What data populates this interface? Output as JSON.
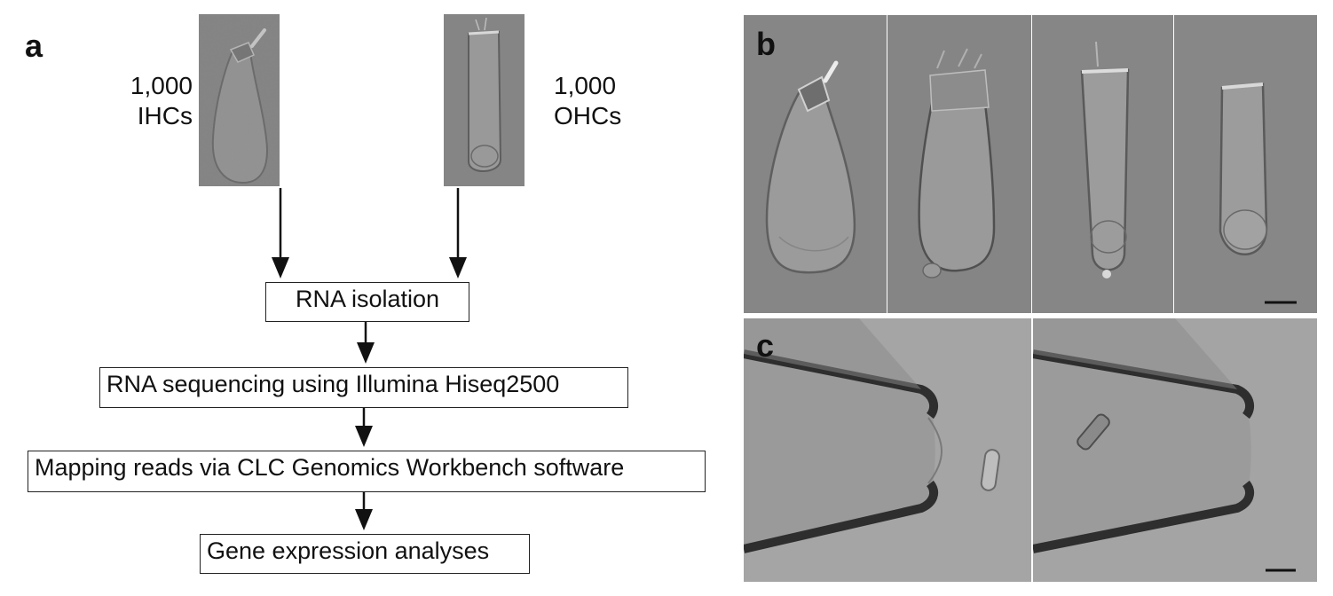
{
  "panel_a": {
    "label": "a",
    "ihc": {
      "line1": "1,000",
      "line2": "IHCs"
    },
    "ohc": {
      "line1": "1,000",
      "line2": "OHCs"
    },
    "steps": [
      "RNA isolation",
      "RNA sequencing using Illumina Hiseq2500",
      "Mapping reads via CLC Genomics Workbench software",
      "Gene expression analyses"
    ]
  },
  "panel_b": {
    "label": "b",
    "image_count": 4
  },
  "panel_c": {
    "label": "c",
    "image_count": 2
  }
}
